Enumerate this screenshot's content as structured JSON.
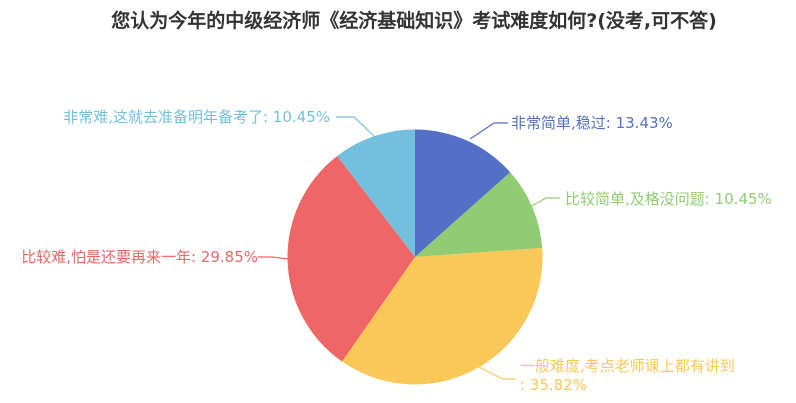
{
  "chart_data": {
    "type": "pie",
    "title": "您认为今年的中级经济师《经济基础知识》考试难度如何?(没考,可不答)",
    "unit": "%",
    "total": 100,
    "start_angle": "top",
    "direction": "clockwise",
    "has_legend": false,
    "label_style": "outside-callout",
    "slices": [
      {
        "label": "非常简单,稳过",
        "value": 13.43,
        "percent_text": "13.43%",
        "color": "#5470C6",
        "display_lines": [
          "非常简单,稳过: 13.43%"
        ]
      },
      {
        "label": "比较简单,及格没问题",
        "value": 10.45,
        "percent_text": "10.45%",
        "color": "#91CC75",
        "display_lines": [
          "比较简单,及格没问题: 10.45%"
        ]
      },
      {
        "label": "一般难度,考点老师课上都有讲到",
        "value": 35.82,
        "percent_text": "35.82%",
        "color": "#FAC858",
        "display_lines": [
          "一般难度,考点老师课上都有讲到",
          ": 35.82%"
        ]
      },
      {
        "label": "比较难,怕是还要再来一年",
        "value": 29.85,
        "percent_text": "29.85%",
        "color": "#EE6666",
        "display_lines": [
          "比较难,怕是还要再来一年: 29.85%"
        ]
      },
      {
        "label": "非常难,这就去准备明年备考了",
        "value": 10.45,
        "percent_text": "10.45%",
        "color": "#73C0DE",
        "display_lines": [
          "非常难,这就去准备明年备考了: 10.45%"
        ]
      }
    ]
  }
}
